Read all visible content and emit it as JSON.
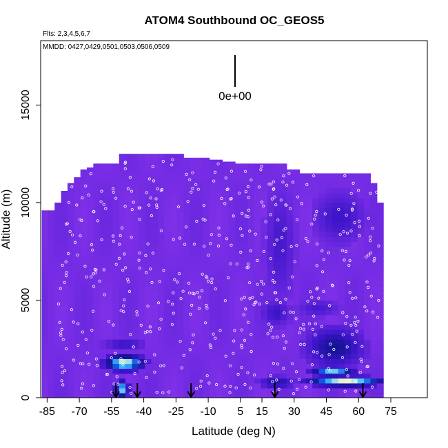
{
  "chart_data": {
    "type": "heatmap",
    "title": "ATOM4 Southbound OC_GEOS5",
    "flights_note": "Flts: 2,3,4,5,6,7",
    "dates_note": "MMDD: 0427,0429,0501,0503,0506,0509",
    "xlabel": "Latitude (deg N)",
    "ylabel": "Altitude (m)",
    "xlim": [
      -88,
      92
    ],
    "ylim": [
      0,
      18300
    ],
    "x_ticks": [
      -85,
      -70,
      -55,
      -40,
      -25,
      -10,
      5,
      15,
      30,
      45,
      60,
      75
    ],
    "y_ticks": [
      0,
      5000,
      10000,
      15000
    ],
    "legend_label": "0e+00",
    "colors": {
      "background_field": "#8a2be2",
      "low": "#7e30e8",
      "mid": "#1616b0",
      "high_core": "#ffffcc",
      "sample_markers": "#ffffff",
      "arrow": "#000000"
    },
    "column_tops": [
      [
        -86,
        9600
      ],
      [
        -83,
        9600
      ],
      [
        -80,
        10000
      ],
      [
        -77,
        10600
      ],
      [
        -74,
        11000
      ],
      [
        -71,
        11300
      ],
      [
        -68,
        11700
      ],
      [
        -65,
        11800
      ],
      [
        -62,
        12000
      ],
      [
        -59,
        12000
      ],
      [
        -56,
        12000
      ],
      [
        -53,
        12000
      ],
      [
        -50,
        12500
      ],
      [
        -47,
        12500
      ],
      [
        -44,
        12500
      ],
      [
        -41,
        12500
      ],
      [
        -38,
        12500
      ],
      [
        -35,
        12500
      ],
      [
        -32,
        12500
      ],
      [
        -29,
        12500
      ],
      [
        -26,
        12500
      ],
      [
        -23,
        12500
      ],
      [
        -20,
        12300
      ],
      [
        -17,
        12300
      ],
      [
        -14,
        12300
      ],
      [
        -11,
        12300
      ],
      [
        -8,
        12200
      ],
      [
        -5,
        12200
      ],
      [
        -2,
        12100
      ],
      [
        1,
        12100
      ],
      [
        4,
        12000
      ],
      [
        7,
        12000
      ],
      [
        10,
        12000
      ],
      [
        13,
        12000
      ],
      [
        16,
        12000
      ],
      [
        19,
        12000
      ],
      [
        22,
        12000
      ],
      [
        25,
        12000
      ],
      [
        28,
        11700
      ],
      [
        31,
        11700
      ],
      [
        34,
        11500
      ],
      [
        37,
        11500
      ],
      [
        40,
        11500
      ],
      [
        43,
        11500
      ],
      [
        46,
        11500
      ],
      [
        49,
        11500
      ],
      [
        52,
        11500
      ],
      [
        55,
        11500
      ],
      [
        58,
        11500
      ],
      [
        61,
        11500
      ],
      [
        64,
        11500
      ],
      [
        67,
        11000
      ],
      [
        70,
        10000
      ]
    ],
    "enhancements": [
      {
        "lat": [
          -58,
          -40
        ],
        "alt": [
          1400,
          2200
        ],
        "level": 1.0
      },
      {
        "lat": [
          -53,
          -47
        ],
        "alt": [
          0,
          900
        ],
        "level": 0.9
      },
      {
        "lat": [
          -58,
          -40
        ],
        "alt": [
          2500,
          3000
        ],
        "level": 0.4
      },
      {
        "lat": [
          14,
          30
        ],
        "alt": [
          500,
          1100
        ],
        "level": 0.5
      },
      {
        "lat": [
          36,
          72
        ],
        "alt": [
          600,
          1100
        ],
        "level": 1.0
      },
      {
        "lat": [
          38,
          58
        ],
        "alt": [
          1100,
          1600
        ],
        "level": 0.9
      },
      {
        "lat": [
          36,
          62
        ],
        "alt": [
          1600,
          3600
        ],
        "level": 0.55
      },
      {
        "lat": [
          15,
          28
        ],
        "alt": [
          3700,
          5000
        ],
        "level": 0.35
      },
      {
        "lat": [
          32,
          50
        ],
        "alt": [
          4200,
          5000
        ],
        "level": 0.3
      },
      {
        "lat": [
          17,
          30
        ],
        "alt": [
          5200,
          10500
        ],
        "level": 0.3
      },
      {
        "lat": [
          40,
          62
        ],
        "alt": [
          8000,
          10500
        ],
        "level": 0.35
      }
    ],
    "arrows_lat": [
      -53,
      -43,
      -18,
      21,
      62
    ]
  }
}
